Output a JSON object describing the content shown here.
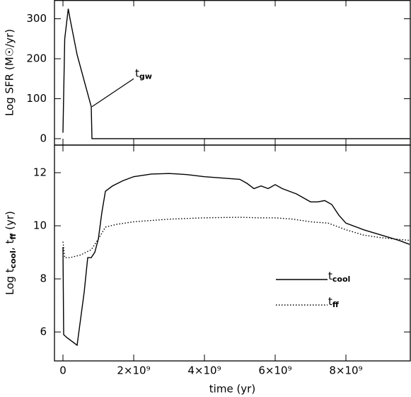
{
  "chart_data": [
    {
      "type": "line",
      "y_label": "Log SFR (M☉/yr)",
      "xlim": [
        -240000000.0,
        9820000000.0
      ],
      "ylim": [
        -16,
        347
      ],
      "yticks": [
        0,
        100,
        200,
        300
      ],
      "annotation": {
        "text": "t",
        "sub": "gw",
        "x": 2000000000.0,
        "y": 150,
        "from_x": 820000000.0,
        "from_y": 80
      },
      "series": [
        {
          "color": "#000000",
          "dash": "solid",
          "x": [
            0,
            50000000.0,
            150000000.0,
            200000000.0,
            400000000.0,
            800000000.0,
            820000000.0,
            9800000000.0
          ],
          "values": [
            15,
            250,
            325,
            300,
            210,
            80,
            0,
            0
          ]
        }
      ]
    },
    {
      "type": "line",
      "y_label": [
        "Log t",
        "cool",
        ", t",
        "ff",
        " (yr)"
      ],
      "x_label": "time (yr)",
      "xlim": [
        -240000000.0,
        9820000000.0
      ],
      "ylim": [
        4.91,
        13.04
      ],
      "xticks": [
        0,
        {
          "value": 2000000000.0,
          "label": "2×10⁹"
        },
        {
          "value": 4000000000.0,
          "label": "4×10⁹"
        },
        {
          "value": 6000000000.0,
          "label": "6×10⁹"
        },
        {
          "value": 8000000000.0,
          "label": "8×10⁹"
        }
      ],
      "yticks": [
        6,
        8,
        10,
        12
      ],
      "series": [
        {
          "name": "t",
          "name_sub": "cool",
          "color": "#000000",
          "dash": "solid",
          "x": [
            0,
            20000000.0,
            100000000.0,
            400000000.0,
            600000000.0,
            700000000.0,
            800000000.0,
            900000000.0,
            1000000000.0,
            1100000000.0,
            1200000000.0,
            1400000000.0,
            1700000000.0,
            2000000000.0,
            2500000000.0,
            3000000000.0,
            3500000000.0,
            4000000000.0,
            4500000000.0,
            5000000000.0,
            5200000000.0,
            5400000000.0,
            5600000000.0,
            5800000000.0,
            6000000000.0,
            6200000000.0,
            6400000000.0,
            6600000000.0,
            6800000000.0,
            7000000000.0,
            7200000000.0,
            7400000000.0,
            7600000000.0,
            7800000000.0,
            8000000000.0,
            8500000000.0,
            9000000000.0,
            9500000000.0,
            9800000000.0
          ],
          "values": [
            9.2,
            5.9,
            5.8,
            5.5,
            7.5,
            8.8,
            8.8,
            9.0,
            9.5,
            10.5,
            11.3,
            11.5,
            11.7,
            11.85,
            11.95,
            11.97,
            11.93,
            11.85,
            11.8,
            11.75,
            11.6,
            11.4,
            11.5,
            11.4,
            11.55,
            11.4,
            11.3,
            11.2,
            11.05,
            10.9,
            10.9,
            10.95,
            10.8,
            10.4,
            10.1,
            9.85,
            9.65,
            9.45,
            9.3
          ]
        },
        {
          "name": "t",
          "name_sub": "ff",
          "color": "#000000",
          "dash": "dotted",
          "x": [
            0,
            50000000.0,
            200000000.0,
            500000000.0,
            800000000.0,
            1000000000.0,
            1200000000.0,
            1500000000.0,
            2000000000.0,
            3000000000.0,
            4000000000.0,
            5000000000.0,
            5500000000.0,
            6000000000.0,
            6500000000.0,
            7000000000.0,
            7500000000.0,
            8000000000.0,
            8500000000.0,
            9000000000.0,
            9800000000.0
          ],
          "values": [
            9.4,
            8.8,
            8.8,
            8.9,
            9.1,
            9.5,
            9.95,
            10.05,
            10.15,
            10.25,
            10.3,
            10.32,
            10.3,
            10.3,
            10.25,
            10.15,
            10.1,
            9.85,
            9.65,
            9.55,
            9.45
          ]
        }
      ]
    }
  ]
}
